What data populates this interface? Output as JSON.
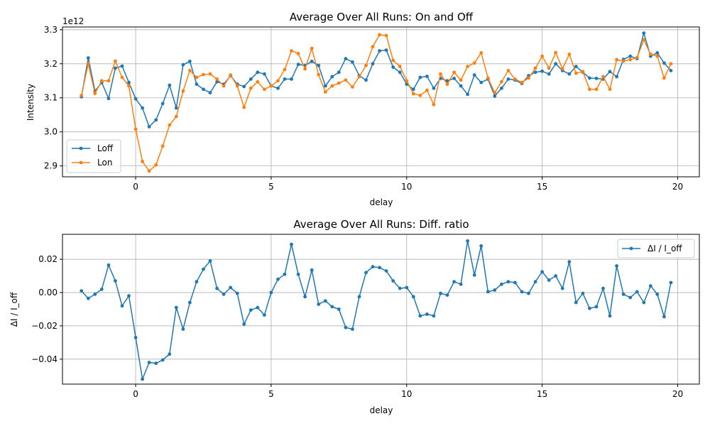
{
  "colors": {
    "loff": "#1f77b4",
    "lon": "#ff7f0e",
    "ratio": "#1f77b4",
    "grid": "#b0b0b0"
  },
  "chart_data": [
    {
      "type": "line",
      "title": "Average Over All Runs: On and Off",
      "xlabel": "delay",
      "ylabel": "Intensity",
      "y_offset_text": "1e12",
      "y_scale": 1000000000000.0,
      "xlim": [
        -2.7,
        20.8
      ],
      "ylim": [
        2.868,
        3.308
      ],
      "xticks": [
        0,
        5,
        10,
        15,
        20
      ],
      "yticks": [
        2.9,
        3.0,
        3.1,
        3.2,
        3.3
      ],
      "ytick_labels": [
        "2.9",
        "3.0",
        "3.1",
        "3.2",
        "3.3"
      ],
      "grid": true,
      "legend": "center-left",
      "x": [
        -2.0,
        -1.75,
        -1.5,
        -1.25,
        -1.0,
        -0.75,
        -0.5,
        -0.25,
        0.0,
        0.25,
        0.5,
        0.75,
        1.0,
        1.25,
        1.5,
        1.75,
        2.0,
        2.25,
        2.5,
        2.75,
        3.0,
        3.25,
        3.5,
        3.75,
        4.0,
        4.25,
        4.5,
        4.75,
        5.0,
        5.25,
        5.5,
        5.75,
        6.0,
        6.25,
        6.5,
        6.75,
        7.0,
        7.25,
        7.5,
        7.75,
        8.0,
        8.25,
        8.5,
        8.75,
        9.0,
        9.25,
        9.5,
        9.75,
        10.0,
        10.25,
        10.5,
        10.75,
        11.0,
        11.25,
        11.5,
        11.75,
        12.0,
        12.25,
        12.5,
        12.75,
        13.0,
        13.25,
        13.5,
        13.75,
        14.0,
        14.25,
        14.5,
        14.75,
        15.0,
        15.25,
        15.5,
        15.75,
        16.0,
        16.25,
        16.5,
        16.75,
        17.0,
        17.25,
        17.5,
        17.75,
        18.0,
        18.25,
        18.5,
        18.75,
        19.0,
        19.25,
        19.5,
        19.75
      ],
      "series": [
        {
          "name": "Loff",
          "values": [
            3.103,
            3.217,
            3.12,
            3.145,
            3.098,
            3.187,
            3.193,
            3.145,
            3.097,
            3.07,
            3.015,
            3.035,
            3.083,
            3.137,
            3.07,
            3.197,
            3.207,
            3.14,
            3.125,
            3.115,
            3.147,
            3.14,
            3.165,
            3.14,
            3.133,
            3.155,
            3.175,
            3.17,
            3.135,
            3.128,
            3.155,
            3.155,
            3.198,
            3.195,
            3.207,
            3.195,
            3.135,
            3.162,
            3.175,
            3.215,
            3.205,
            3.165,
            3.152,
            3.2,
            3.238,
            3.24,
            3.19,
            3.175,
            3.14,
            3.125,
            3.16,
            3.163,
            3.128,
            3.157,
            3.15,
            3.157,
            3.135,
            3.11,
            3.167,
            3.145,
            3.155,
            3.105,
            3.128,
            3.155,
            3.152,
            3.142,
            3.165,
            3.175,
            3.178,
            3.17,
            3.2,
            3.18,
            3.17,
            3.192,
            3.175,
            3.158,
            3.157,
            3.155,
            3.177,
            3.162,
            3.213,
            3.222,
            3.215,
            3.29,
            3.222,
            3.232,
            3.202,
            3.18
          ]
        },
        {
          "name": "Lon",
          "values": [
            3.107,
            3.2,
            3.113,
            3.15,
            3.15,
            3.208,
            3.16,
            3.135,
            3.008,
            2.913,
            2.885,
            2.903,
            2.958,
            3.02,
            3.045,
            3.12,
            3.18,
            3.16,
            3.168,
            3.17,
            3.155,
            3.135,
            3.167,
            3.135,
            3.072,
            3.128,
            3.147,
            3.125,
            3.135,
            3.15,
            3.183,
            3.238,
            3.23,
            3.185,
            3.245,
            3.168,
            3.117,
            3.135,
            3.143,
            3.152,
            3.132,
            3.162,
            3.195,
            3.25,
            3.285,
            3.283,
            3.21,
            3.192,
            3.15,
            3.112,
            3.107,
            3.122,
            3.08,
            3.17,
            3.14,
            3.175,
            3.152,
            3.192,
            3.202,
            3.232,
            3.158,
            3.115,
            3.147,
            3.18,
            3.155,
            3.145,
            3.158,
            3.187,
            3.222,
            3.187,
            3.233,
            3.185,
            3.228,
            3.172,
            3.177,
            3.125,
            3.125,
            3.162,
            3.125,
            3.212,
            3.208,
            3.212,
            3.218,
            3.27,
            3.228,
            3.222,
            3.158,
            3.2
          ]
        }
      ]
    },
    {
      "type": "line",
      "title": "Average Over All Runs: Diff. ratio",
      "xlabel": "delay",
      "ylabel": "ΔI / I_off",
      "xlim": [
        -2.7,
        20.8
      ],
      "ylim": [
        -0.055,
        0.035
      ],
      "xticks": [
        0,
        5,
        10,
        15,
        20
      ],
      "yticks": [
        -0.04,
        -0.02,
        0.0,
        0.02
      ],
      "ytick_labels": [
        "−0.04",
        "−0.02",
        "0.00",
        "0.02"
      ],
      "grid": true,
      "legend": "top-right",
      "x": [
        -2.0,
        -1.75,
        -1.5,
        -1.25,
        -1.0,
        -0.75,
        -0.5,
        -0.25,
        0.0,
        0.25,
        0.5,
        0.75,
        1.0,
        1.25,
        1.5,
        1.75,
        2.0,
        2.25,
        2.5,
        2.75,
        3.0,
        3.25,
        3.5,
        3.75,
        4.0,
        4.25,
        4.5,
        4.75,
        5.0,
        5.25,
        5.5,
        5.75,
        6.0,
        6.25,
        6.5,
        6.75,
        7.0,
        7.25,
        7.5,
        7.75,
        8.0,
        8.25,
        8.5,
        8.75,
        9.0,
        9.25,
        9.5,
        9.75,
        10.0,
        10.25,
        10.5,
        10.75,
        11.0,
        11.25,
        11.5,
        11.75,
        12.0,
        12.25,
        12.5,
        12.75,
        13.0,
        13.25,
        13.5,
        13.75,
        14.0,
        14.25,
        14.5,
        14.75,
        15.0,
        15.25,
        15.5,
        15.75,
        16.0,
        16.25,
        16.5,
        16.75,
        17.0,
        17.25,
        17.5,
        17.75,
        18.0,
        18.25,
        18.5,
        18.75,
        19.0,
        19.25,
        19.5,
        19.75
      ],
      "series": [
        {
          "name": "ΔI / I_off",
          "values": [
            0.001,
            -0.0035,
            -0.001,
            0.002,
            0.0165,
            0.007,
            -0.008,
            -0.002,
            -0.027,
            -0.052,
            -0.042,
            -0.0425,
            -0.0405,
            -0.037,
            -0.009,
            -0.022,
            -0.006,
            0.0065,
            0.014,
            0.019,
            0.0025,
            -0.001,
            0.003,
            -0.0005,
            -0.019,
            -0.0105,
            -0.009,
            -0.0135,
            0.0,
            0.008,
            0.011,
            0.029,
            0.011,
            -0.0025,
            0.0135,
            -0.007,
            -0.005,
            -0.0085,
            -0.01,
            -0.021,
            -0.022,
            -0.0025,
            0.012,
            0.0155,
            0.015,
            0.013,
            0.007,
            0.0025,
            0.003,
            -0.0025,
            -0.014,
            -0.013,
            -0.014,
            -0.0005,
            -0.0015,
            0.0065,
            0.005,
            0.031,
            0.0105,
            0.028,
            0.0005,
            0.0015,
            0.005,
            0.0065,
            0.006,
            0.0005,
            -0.0005,
            0.0065,
            0.0125,
            0.0075,
            0.01,
            0.0025,
            0.0185,
            -0.006,
            -0.0005,
            -0.0095,
            -0.0085,
            0.0025,
            -0.014,
            0.016,
            -0.001,
            -0.003,
            0.0005,
            -0.006,
            0.004,
            -0.001,
            -0.0145,
            0.006
          ]
        }
      ]
    }
  ]
}
